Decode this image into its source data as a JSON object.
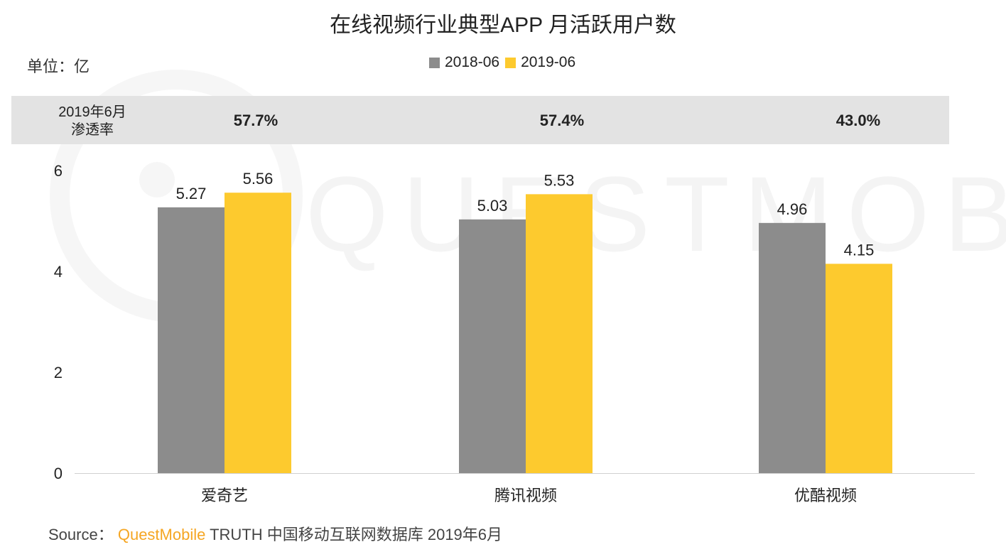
{
  "title": "在线视频行业典型APP 月活跃用户数",
  "unit_label": "单位：亿",
  "penetration_label_line1": "2019年6月",
  "penetration_label_line2": "渗透率",
  "penetration": [
    "57.7%",
    "57.4%",
    "43.0%"
  ],
  "watermark": "QUESTMOBILE",
  "source": {
    "prefix": "Source：",
    "brand": "QuestMobile",
    "suffix": " TRUTH 中国移动互联网数据库 2019年6月"
  },
  "chart_data": {
    "type": "bar",
    "categories": [
      "爱奇艺",
      "腾讯视频",
      "优酷视频"
    ],
    "series": [
      {
        "name": "2018-06",
        "values": [
          5.27,
          5.03,
          4.96
        ],
        "color": "#8c8c8c"
      },
      {
        "name": "2019-06",
        "values": [
          5.56,
          5.53,
          4.15
        ],
        "color": "#fdca2e"
      }
    ],
    "yticks": [
      0,
      2,
      4,
      6
    ],
    "ylim": [
      0,
      6
    ],
    "legend_position": "top-center",
    "grid": false
  }
}
